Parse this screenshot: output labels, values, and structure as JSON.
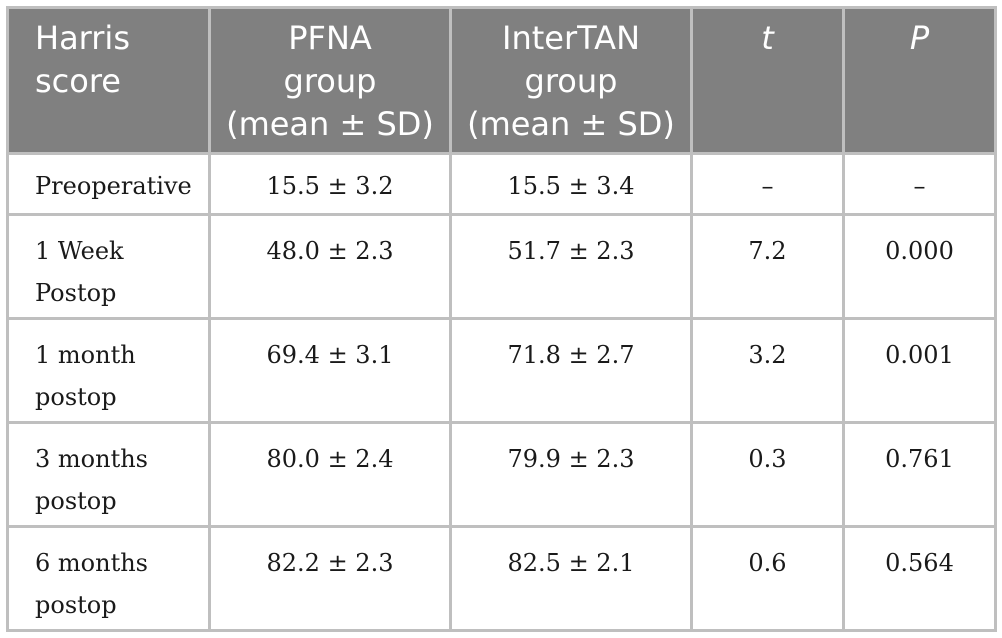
{
  "table": {
    "headers": [
      {
        "line1": "Harris",
        "line2": "score",
        "line3": ""
      },
      {
        "line1": "PFNA",
        "line2": "group",
        "line3": "(mean ± SD)"
      },
      {
        "line1": "InterTAN",
        "line2": "group",
        "line3": "(mean ± SD)"
      },
      {
        "line1": "t",
        "line2": "",
        "line3": ""
      },
      {
        "line1": "P",
        "line2": "",
        "line3": ""
      }
    ],
    "rows": [
      {
        "label1": "Preoperative",
        "label2": "",
        "pfna": "15.5 ± 3.2",
        "intertan": "15.5 ± 3.4",
        "t": "–",
        "p": "–"
      },
      {
        "label1": "1 Week",
        "label2": "Postop",
        "pfna": "48.0 ± 2.3",
        "intertan": "51.7 ± 2.3",
        "t": "7.2",
        "p": "0.000"
      },
      {
        "label1": "1 month",
        "label2": "postop",
        "pfna": "69.4 ± 3.1",
        "intertan": "71.8 ± 2.7",
        "t": "3.2",
        "p": "0.001"
      },
      {
        "label1": "3 months",
        "label2": "postop",
        "pfna": "80.0 ± 2.4",
        "intertan": "79.9 ± 2.3",
        "t": "0.3",
        "p": "0.761"
      },
      {
        "label1": "6 months",
        "label2": "postop",
        "pfna": "82.2 ± 2.3",
        "intertan": "82.5 ± 2.1",
        "t": "0.6",
        "p": "0.564"
      }
    ]
  }
}
